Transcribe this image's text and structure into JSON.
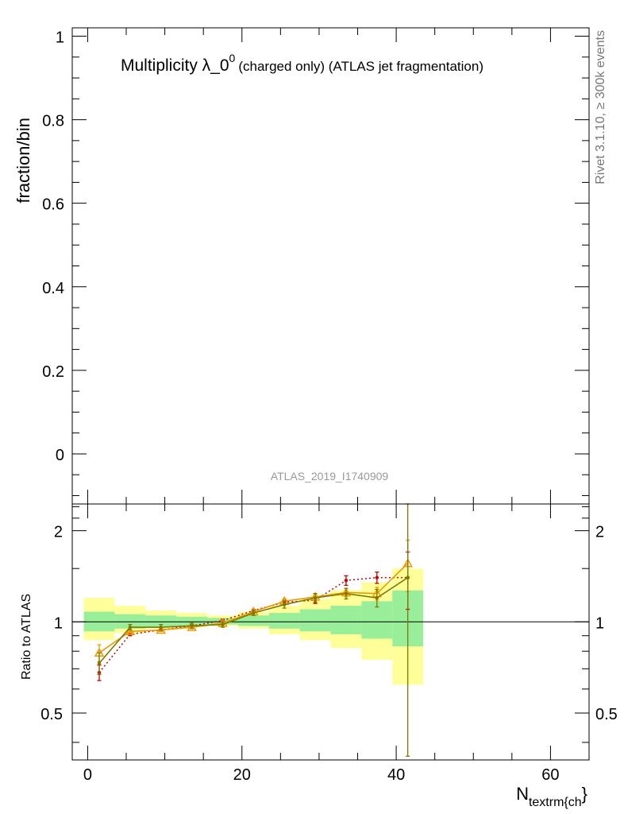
{
  "chart_data": [
    {
      "panel": "main",
      "type": "line",
      "title": "Multiplicity λ_0",
      "title_sup": "0",
      "title_suffix": "(charged only) (ATLAS jet fragmentation)",
      "ylabel": "fraction/bin",
      "watermark": "ATLAS_2019_I1740909",
      "side_label": "Rivet 3.1.10, ≥ 300k events",
      "xlim": [
        -2,
        65
      ],
      "ylim": [
        -0.12,
        1.02
      ],
      "yticks": [
        0,
        0.2,
        0.4,
        0.6,
        0.8,
        1
      ],
      "ytick_labels": [
        "0",
        "0.2",
        "0.4",
        "0.6",
        "0.8",
        "1"
      ],
      "series": []
    },
    {
      "panel": "ratio",
      "type": "line",
      "ylabel": "Ratio to ATLAS",
      "xlabel": "N",
      "xlabel_sub": "textrm{ch",
      "xlabel_suffix": "}",
      "xlim": [
        -2,
        65
      ],
      "ylim": [
        0.35,
        2.45
      ],
      "log_y": true,
      "xticks": [
        0,
        20,
        40,
        60
      ],
      "xtick_labels": [
        "0",
        "20",
        "40",
        "60"
      ],
      "yticks_labeled": [
        0.5,
        1,
        2
      ],
      "ytick_labels": [
        "0.5",
        "1",
        "2"
      ],
      "reference_line": 1,
      "bins": [
        [
          -0.5,
          3.5
        ],
        [
          3.5,
          7.5
        ],
        [
          7.5,
          11.5
        ],
        [
          11.5,
          15.5
        ],
        [
          15.5,
          19.5
        ],
        [
          19.5,
          23.5
        ],
        [
          23.5,
          27.5
        ],
        [
          27.5,
          31.5
        ],
        [
          31.5,
          35.5
        ],
        [
          35.5,
          39.5
        ],
        [
          39.5,
          43.5
        ]
      ],
      "x": [
        1.5,
        5.5,
        9.5,
        13.5,
        17.5,
        21.5,
        25.5,
        29.5,
        33.5,
        37.5,
        41.5
      ],
      "band_stat": {
        "lo": [
          0.93,
          0.95,
          0.96,
          0.97,
          0.98,
          0.97,
          0.95,
          0.93,
          0.91,
          0.88,
          0.83
        ],
        "hi": [
          1.08,
          1.06,
          1.05,
          1.04,
          1.03,
          1.05,
          1.07,
          1.1,
          1.13,
          1.17,
          1.27
        ]
      },
      "band_total": {
        "lo": [
          0.87,
          0.92,
          0.95,
          0.96,
          0.97,
          0.95,
          0.91,
          0.87,
          0.82,
          0.75,
          0.62
        ],
        "hi": [
          1.2,
          1.13,
          1.09,
          1.07,
          1.05,
          1.08,
          1.13,
          1.19,
          1.27,
          1.35,
          1.5
        ]
      },
      "series": [
        {
          "color": "#cc0000",
          "style": "dotted",
          "marker": "dot",
          "values": [
            0.68,
            0.91,
            0.94,
            0.97,
            1.01,
            1.09,
            1.16,
            1.18,
            1.37,
            1.4,
            1.4
          ],
          "err": [
            0.04,
            0.01,
            0.01,
            0.01,
            0.01,
            0.01,
            0.02,
            0.03,
            0.05,
            0.06,
            0.3
          ]
        },
        {
          "color": "#ee9900",
          "style": "solid",
          "marker": "triangle",
          "values": [
            0.79,
            0.93,
            0.94,
            0.96,
            0.99,
            1.08,
            1.17,
            1.21,
            1.25,
            1.24,
            1.56
          ],
          "err": [
            0.05,
            0.01,
            0.01,
            0.01,
            0.01,
            0.01,
            0.02,
            0.03,
            0.04,
            0.06,
            0.3
          ]
        },
        {
          "color": "#7a7a00",
          "style": "solid",
          "marker": "dot",
          "values": [
            0.73,
            0.96,
            0.96,
            0.97,
            0.98,
            1.07,
            1.14,
            1.2,
            1.24,
            1.2,
            1.4
          ],
          "err": [
            0.06,
            0.02,
            0.02,
            0.02,
            0.02,
            0.02,
            0.03,
            0.04,
            0.05,
            0.08,
            1.1
          ]
        }
      ]
    }
  ]
}
